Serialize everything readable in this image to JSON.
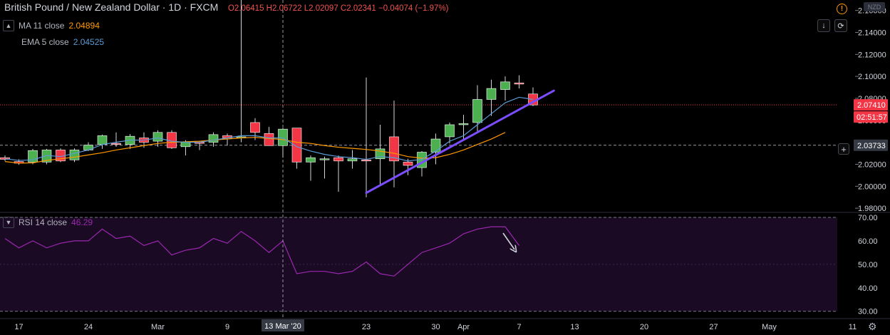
{
  "header": {
    "title": "British Pound / New Zealand Dollar · 1D · FXCM",
    "open": "O2.06415",
    "high": "H2.06722",
    "low": "L2.02097",
    "close": "C2.02341",
    "change": "−0.04074 (−1.97%)"
  },
  "indicators": {
    "ma_label": "MA 11 close",
    "ma_value": "2.04894",
    "ema_label": "EMA 5 close",
    "ema_value": "2.04525",
    "rsi_label": "RSI 14 close",
    "rsi_value": "46.29"
  },
  "currency_badge": "NZD",
  "price_badges": {
    "last_price": "2.07410",
    "countdown": "02:51:57",
    "crosshair_price": "2.03733",
    "crosshair_date": "13 Mar '20"
  },
  "colors": {
    "up": "#4caf50",
    "down": "#f23645",
    "ma": "#ff9800",
    "ema": "#5b9bd5",
    "trendline": "#7c4dff",
    "rsi": "#9c27b0",
    "rsi_band": "#1a0a24"
  },
  "icons": [
    "chevron-down-icon",
    "alert-icon",
    "download-icon",
    "refresh-icon",
    "crosshair-plus-icon",
    "gear-icon",
    "arrow-down-icon"
  ],
  "chart_data": [
    {
      "type": "candlestick",
      "title": "British Pound / New Zealand Dollar · 1D · FXCM",
      "price_ticks": [
        "2.16000",
        "2.14000",
        "2.12000",
        "2.10000",
        "2.08000",
        "2.06000",
        "2.04000",
        "2.02000",
        "2.00000",
        "1.98000"
      ],
      "ylim": [
        1.9775,
        2.1695
      ],
      "date_ticks": [
        {
          "label": "17",
          "i": 1
        },
        {
          "label": "24",
          "i": 6
        },
        {
          "label": "Mar",
          "i": 11
        },
        {
          "label": "9",
          "i": 16
        },
        {
          "label": "13 Mar '20",
          "i": 20
        },
        {
          "label": "23",
          "i": 26
        },
        {
          "label": "30",
          "i": 31
        },
        {
          "label": "Apr",
          "i": 33
        },
        {
          "label": "7",
          "i": 37
        },
        {
          "label": "13",
          "i": 41
        },
        {
          "label": "20",
          "i": 46
        },
        {
          "label": "27",
          "i": 51
        },
        {
          "label": "May",
          "i": 55
        },
        {
          "label": "11",
          "i": 61
        }
      ],
      "candles": [
        [
          2.026,
          2.028,
          2.023,
          2.0245
        ],
        [
          2.0225,
          2.0245,
          2.0195,
          2.021
        ],
        [
          2.022,
          2.034,
          2.02,
          2.0325
        ],
        [
          2.022,
          2.034,
          2.02,
          2.033
        ],
        [
          2.033,
          2.0345,
          2.022,
          2.023
        ],
        [
          2.024,
          2.0345,
          2.022,
          2.033
        ],
        [
          2.033,
          2.04,
          2.032,
          2.0375
        ],
        [
          2.038,
          2.047,
          2.034,
          2.046
        ],
        [
          2.039,
          2.049,
          2.036,
          2.038
        ],
        [
          2.038,
          2.0475,
          2.034,
          2.0455
        ],
        [
          2.044,
          2.049,
          2.035,
          2.04
        ],
        [
          2.041,
          2.051,
          2.036,
          2.049
        ],
        [
          2.049,
          2.051,
          2.034,
          2.035
        ],
        [
          2.036,
          2.042,
          2.028,
          2.04
        ],
        [
          2.04,
          2.041,
          2.033,
          2.039
        ],
        [
          2.04,
          2.049,
          2.036,
          2.047
        ],
        [
          2.046,
          2.048,
          2.037,
          2.044
        ],
        [
          2.044,
          2.17,
          2.04,
          2.045
        ],
        [
          2.058,
          2.062,
          2.042,
          2.049
        ],
        [
          2.048,
          2.054,
          2.037,
          2.037
        ],
        [
          2.037,
          2.053,
          2.026,
          2.052
        ],
        [
          2.053,
          2.053,
          2.016,
          2.022
        ],
        [
          2.022,
          2.028,
          2.005,
          2.026
        ],
        [
          2.025,
          2.027,
          2.007,
          2.025
        ],
        [
          2.026,
          2.028,
          1.995,
          2.023
        ],
        [
          2.023,
          2.033,
          2.016,
          2.025
        ],
        [
          2.024,
          2.099,
          1.99,
          2.023
        ],
        [
          2.025,
          2.056,
          2.0,
          2.034
        ],
        [
          2.045,
          2.078,
          1.999,
          2.023
        ],
        [
          2.022,
          2.025,
          2.01,
          2.019
        ],
        [
          2.017,
          2.032,
          2.009,
          2.031
        ],
        [
          2.031,
          2.048,
          2.02,
          2.043
        ],
        [
          2.045,
          2.058,
          2.039,
          2.056
        ],
        [
          2.056,
          2.065,
          2.042,
          2.057
        ],
        [
          2.058,
          2.092,
          2.05,
          2.079
        ],
        [
          2.079,
          2.097,
          2.064,
          2.089
        ],
        [
          2.088,
          2.1,
          2.078,
          2.095
        ],
        [
          2.094,
          2.101,
          2.089,
          2.093
        ],
        [
          2.084,
          2.09,
          2.073,
          2.074
        ]
      ],
      "ma_values": [
        2.0225,
        2.021,
        2.0213,
        2.0235,
        2.025,
        2.0265,
        2.0285,
        2.0305,
        2.033,
        2.035,
        2.037,
        2.039,
        2.04,
        2.0405,
        2.041,
        2.042,
        2.043,
        2.044,
        2.0445,
        2.0435,
        2.0425,
        2.04,
        2.039,
        2.037,
        2.0355,
        2.0345,
        2.0335,
        2.032,
        2.03,
        2.027,
        2.0255,
        2.026,
        2.029,
        2.033,
        2.038,
        2.043,
        2.049
      ],
      "ema_values": [
        2.025,
        2.0235,
        2.024,
        2.028,
        2.027,
        2.03,
        2.033,
        2.038,
        2.04,
        2.042,
        2.042,
        2.044,
        2.041,
        2.04,
        2.04,
        2.042,
        2.044,
        2.046,
        2.046,
        2.044,
        2.044,
        2.036,
        2.032,
        2.029,
        2.027,
        2.026,
        2.0245,
        2.027,
        2.026,
        2.023,
        2.0245,
        2.032,
        2.041,
        2.046,
        2.056,
        2.066,
        2.076,
        2.081,
        2.079
      ],
      "trendline": {
        "from": {
          "i": 26,
          "price": 1.994
        },
        "to": {
          "i": 39.5,
          "price": 2.087
        }
      },
      "last_price_line": 2.0741,
      "crosshair_price_line": 2.03733
    },
    {
      "type": "line",
      "title": "RSI 14 close",
      "ticks": [
        "70.00",
        "60.00",
        "50.00",
        "40.00",
        "30.00"
      ],
      "ylim": [
        29,
        71.5
      ],
      "bands": [
        30,
        70
      ],
      "values": [
        61,
        57,
        60,
        57,
        59,
        60,
        60,
        65,
        61,
        62,
        58,
        60,
        54,
        56,
        57,
        61,
        59,
        64,
        60,
        55,
        60,
        46,
        47,
        47,
        46,
        47,
        51,
        46,
        45,
        50,
        55,
        57,
        59,
        63,
        65,
        66,
        66,
        58
      ]
    }
  ]
}
